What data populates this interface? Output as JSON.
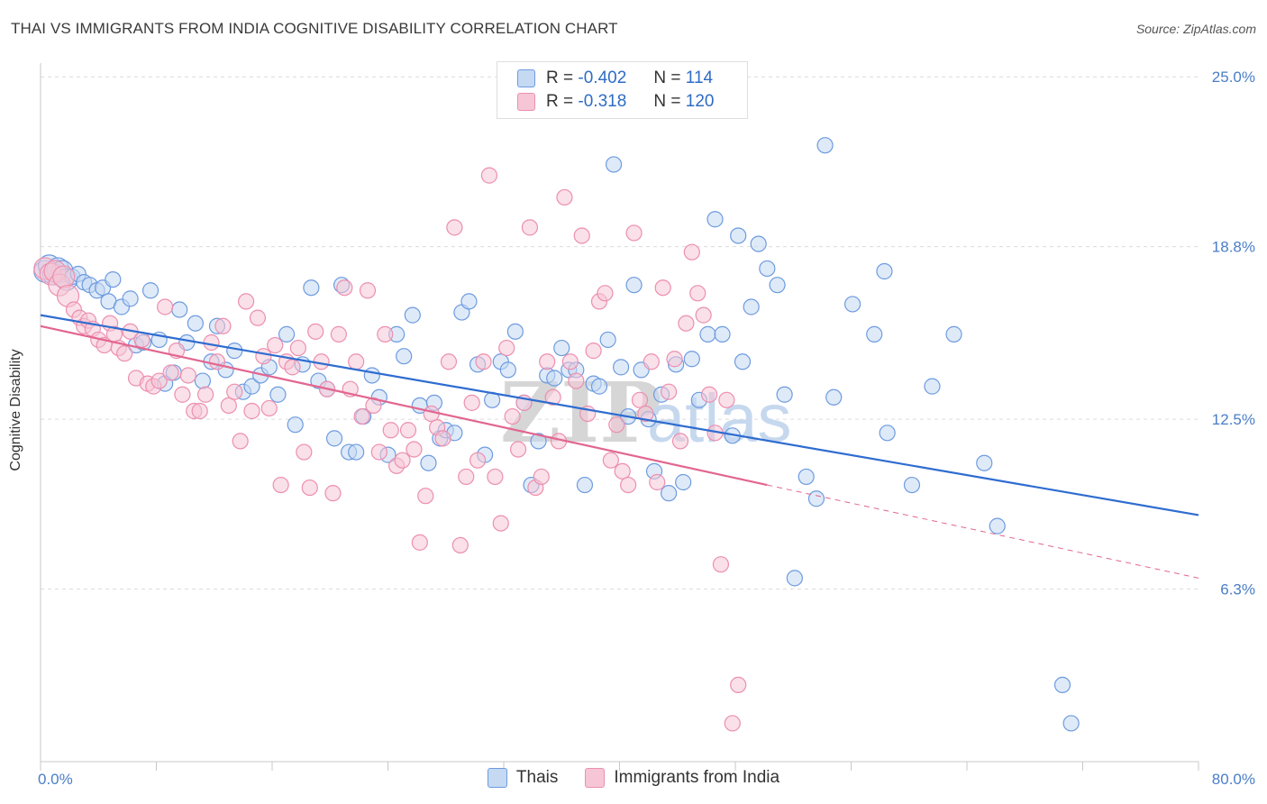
{
  "title": "THAI VS IMMIGRANTS FROM INDIA COGNITIVE DISABILITY CORRELATION CHART",
  "source": "Source: ZipAtlas.com",
  "watermark": {
    "zip": "ZIP",
    "atlas": "atlas"
  },
  "legend": {
    "r_label": "R =",
    "n_label": "N =",
    "rows": [
      {
        "r": "-0.402",
        "n": "114"
      },
      {
        "r": "-0.318",
        "n": "120"
      }
    ]
  },
  "chart_data": {
    "type": "scatter",
    "title": "THAI VS IMMIGRANTS FROM INDIA COGNITIVE DISABILITY CORRELATION CHART",
    "xlabel": "",
    "ylabel": "Cognitive Disability",
    "xlim": [
      0,
      80
    ],
    "ylim": [
      0,
      25.5
    ],
    "x_tick_labels": [
      "0.0%",
      "80.0%"
    ],
    "y_ticks": [
      6.3,
      12.5,
      18.8,
      25.0
    ],
    "y_tick_labels": [
      "6.3%",
      "12.5%",
      "18.8%",
      "25.0%"
    ],
    "grid": true,
    "legend_position": "top-center",
    "series": [
      {
        "name": "Thais",
        "color": "#6d9be0",
        "fill": "#c5d9f3",
        "r": -0.402,
        "n": 114,
        "trend": {
          "x": [
            0,
            80
          ],
          "y": [
            16.3,
            9.0
          ]
        },
        "points": [
          [
            0.3,
            17.9
          ],
          [
            0.6,
            18.1
          ],
          [
            0.9,
            17.8
          ],
          [
            1.2,
            18.0
          ],
          [
            1.5,
            17.9
          ],
          [
            1.8,
            17.6
          ],
          [
            2.2,
            17.7
          ],
          [
            2.6,
            17.8
          ],
          [
            3.0,
            17.5
          ],
          [
            3.4,
            17.4
          ],
          [
            3.9,
            17.2
          ],
          [
            4.3,
            17.3
          ],
          [
            4.7,
            16.8
          ],
          [
            5.0,
            17.6
          ],
          [
            5.6,
            16.6
          ],
          [
            6.2,
            16.9
          ],
          [
            6.6,
            15.2
          ],
          [
            7.1,
            15.3
          ],
          [
            7.6,
            17.2
          ],
          [
            8.2,
            15.4
          ],
          [
            8.6,
            13.8
          ],
          [
            9.2,
            14.2
          ],
          [
            9.6,
            16.5
          ],
          [
            10.1,
            15.3
          ],
          [
            10.7,
            16.0
          ],
          [
            11.2,
            13.9
          ],
          [
            11.8,
            14.6
          ],
          [
            12.2,
            15.9
          ],
          [
            12.8,
            14.3
          ],
          [
            13.4,
            15.0
          ],
          [
            14.0,
            13.5
          ],
          [
            14.6,
            13.7
          ],
          [
            15.2,
            14.1
          ],
          [
            15.8,
            14.4
          ],
          [
            16.4,
            13.4
          ],
          [
            17.0,
            15.6
          ],
          [
            17.6,
            12.3
          ],
          [
            18.1,
            14.5
          ],
          [
            18.7,
            17.3
          ],
          [
            19.2,
            13.9
          ],
          [
            19.8,
            13.6
          ],
          [
            20.3,
            11.8
          ],
          [
            20.8,
            17.4
          ],
          [
            21.3,
            11.3
          ],
          [
            21.8,
            11.3
          ],
          [
            22.3,
            12.6
          ],
          [
            22.9,
            14.1
          ],
          [
            23.4,
            13.3
          ],
          [
            24.0,
            11.2
          ],
          [
            24.6,
            15.6
          ],
          [
            25.1,
            14.8
          ],
          [
            25.7,
            16.3
          ],
          [
            26.2,
            13.0
          ],
          [
            26.8,
            10.9
          ],
          [
            27.2,
            13.1
          ],
          [
            27.6,
            11.8
          ],
          [
            28.0,
            12.1
          ],
          [
            28.6,
            12.0
          ],
          [
            29.1,
            16.4
          ],
          [
            29.6,
            16.8
          ],
          [
            30.2,
            14.5
          ],
          [
            30.7,
            11.2
          ],
          [
            31.2,
            13.2
          ],
          [
            31.8,
            14.6
          ],
          [
            32.3,
            14.3
          ],
          [
            32.8,
            15.7
          ],
          [
            33.4,
            13.1
          ],
          [
            33.9,
            10.1
          ],
          [
            34.4,
            11.7
          ],
          [
            35.0,
            14.1
          ],
          [
            35.5,
            14.0
          ],
          [
            36.0,
            15.1
          ],
          [
            36.5,
            14.3
          ],
          [
            37.0,
            14.3
          ],
          [
            37.6,
            10.1
          ],
          [
            38.2,
            13.8
          ],
          [
            38.6,
            13.7
          ],
          [
            39.2,
            15.4
          ],
          [
            39.6,
            21.8
          ],
          [
            40.1,
            14.4
          ],
          [
            40.6,
            12.6
          ],
          [
            41.0,
            17.4
          ],
          [
            41.5,
            14.3
          ],
          [
            42.0,
            12.5
          ],
          [
            42.4,
            10.6
          ],
          [
            42.9,
            13.4
          ],
          [
            43.4,
            9.8
          ],
          [
            43.9,
            14.5
          ],
          [
            44.4,
            10.2
          ],
          [
            45.0,
            14.7
          ],
          [
            45.5,
            13.2
          ],
          [
            46.1,
            15.6
          ],
          [
            46.6,
            19.8
          ],
          [
            47.1,
            15.6
          ],
          [
            47.8,
            11.9
          ],
          [
            48.2,
            19.2
          ],
          [
            48.5,
            14.6
          ],
          [
            49.1,
            16.6
          ],
          [
            49.6,
            18.9
          ],
          [
            50.2,
            18.0
          ],
          [
            50.9,
            17.4
          ],
          [
            51.4,
            13.4
          ],
          [
            52.1,
            6.7
          ],
          [
            52.9,
            10.4
          ],
          [
            53.6,
            9.6
          ],
          [
            54.2,
            22.5
          ],
          [
            54.8,
            13.3
          ],
          [
            56.1,
            16.7
          ],
          [
            57.6,
            15.6
          ],
          [
            58.3,
            17.9
          ],
          [
            58.5,
            12.0
          ],
          [
            60.2,
            10.1
          ],
          [
            61.6,
            13.7
          ],
          [
            63.1,
            15.6
          ],
          [
            65.2,
            10.9
          ],
          [
            66.1,
            8.6
          ],
          [
            70.6,
            2.8
          ],
          [
            71.2,
            1.4
          ]
        ]
      },
      {
        "name": "Immigrants from India",
        "color": "#ec8fb0",
        "fill": "#f6c6d6",
        "r": -0.318,
        "n": 120,
        "trend": {
          "x": [
            0,
            50.2
          ],
          "y": [
            15.9,
            10.1
          ]
        },
        "trend_dashed": {
          "x": [
            50.2,
            80
          ],
          "y": [
            10.1,
            6.7
          ]
        },
        "points": [
          [
            0.3,
            18.0
          ],
          [
            0.7,
            17.8
          ],
          [
            1.0,
            17.9
          ],
          [
            1.3,
            17.4
          ],
          [
            1.6,
            17.7
          ],
          [
            1.9,
            17.0
          ],
          [
            2.3,
            16.5
          ],
          [
            2.7,
            16.2
          ],
          [
            3.0,
            15.9
          ],
          [
            3.3,
            16.1
          ],
          [
            3.6,
            15.8
          ],
          [
            4.0,
            15.4
          ],
          [
            4.4,
            15.2
          ],
          [
            4.8,
            16.0
          ],
          [
            5.1,
            15.6
          ],
          [
            5.4,
            15.1
          ],
          [
            5.8,
            14.9
          ],
          [
            6.2,
            15.7
          ],
          [
            6.6,
            14.0
          ],
          [
            7.0,
            15.4
          ],
          [
            7.4,
            13.8
          ],
          [
            7.8,
            13.7
          ],
          [
            8.2,
            13.9
          ],
          [
            8.6,
            16.6
          ],
          [
            9.0,
            14.2
          ],
          [
            9.4,
            15.0
          ],
          [
            9.8,
            13.4
          ],
          [
            10.2,
            14.1
          ],
          [
            10.6,
            12.8
          ],
          [
            11.0,
            12.8
          ],
          [
            11.4,
            13.4
          ],
          [
            11.8,
            15.3
          ],
          [
            12.2,
            14.6
          ],
          [
            12.6,
            15.9
          ],
          [
            13.0,
            13.0
          ],
          [
            13.4,
            13.5
          ],
          [
            13.8,
            11.7
          ],
          [
            14.2,
            16.8
          ],
          [
            14.6,
            12.8
          ],
          [
            15.0,
            16.2
          ],
          [
            15.4,
            14.8
          ],
          [
            15.8,
            12.9
          ],
          [
            16.2,
            15.2
          ],
          [
            16.6,
            10.1
          ],
          [
            17.0,
            14.6
          ],
          [
            17.4,
            14.4
          ],
          [
            17.8,
            15.1
          ],
          [
            18.2,
            11.3
          ],
          [
            18.6,
            10.0
          ],
          [
            19.0,
            15.7
          ],
          [
            19.4,
            14.6
          ],
          [
            19.8,
            13.6
          ],
          [
            20.2,
            9.8
          ],
          [
            20.6,
            15.6
          ],
          [
            21.0,
            17.3
          ],
          [
            21.4,
            13.6
          ],
          [
            21.8,
            14.6
          ],
          [
            22.2,
            12.6
          ],
          [
            22.6,
            17.2
          ],
          [
            23.0,
            13.0
          ],
          [
            23.4,
            11.3
          ],
          [
            23.8,
            15.6
          ],
          [
            24.2,
            12.1
          ],
          [
            24.6,
            10.8
          ],
          [
            25.0,
            11.0
          ],
          [
            25.4,
            12.1
          ],
          [
            25.8,
            11.4
          ],
          [
            26.2,
            8.0
          ],
          [
            26.6,
            9.7
          ],
          [
            27.0,
            12.7
          ],
          [
            27.4,
            12.2
          ],
          [
            27.8,
            11.8
          ],
          [
            28.2,
            14.6
          ],
          [
            28.6,
            19.5
          ],
          [
            29.0,
            7.9
          ],
          [
            29.4,
            10.4
          ],
          [
            29.8,
            13.1
          ],
          [
            30.2,
            11.0
          ],
          [
            30.6,
            14.6
          ],
          [
            31.0,
            21.4
          ],
          [
            31.4,
            10.4
          ],
          [
            31.8,
            8.7
          ],
          [
            32.2,
            15.1
          ],
          [
            32.6,
            12.6
          ],
          [
            33.0,
            11.4
          ],
          [
            33.4,
            13.1
          ],
          [
            33.8,
            19.5
          ],
          [
            34.2,
            10.0
          ],
          [
            34.6,
            10.4
          ],
          [
            35.0,
            14.6
          ],
          [
            35.4,
            13.3
          ],
          [
            35.8,
            11.7
          ],
          [
            36.2,
            20.6
          ],
          [
            36.6,
            14.6
          ],
          [
            37.0,
            13.9
          ],
          [
            37.4,
            19.2
          ],
          [
            37.8,
            12.7
          ],
          [
            38.2,
            15.0
          ],
          [
            38.6,
            16.8
          ],
          [
            39.0,
            17.1
          ],
          [
            39.4,
            11.0
          ],
          [
            39.8,
            12.3
          ],
          [
            40.2,
            10.6
          ],
          [
            40.6,
            10.1
          ],
          [
            41.0,
            19.3
          ],
          [
            41.4,
            13.2
          ],
          [
            41.8,
            12.7
          ],
          [
            42.2,
            14.6
          ],
          [
            42.6,
            10.2
          ],
          [
            43.0,
            17.3
          ],
          [
            43.4,
            13.5
          ],
          [
            43.8,
            14.7
          ],
          [
            44.2,
            11.7
          ],
          [
            44.6,
            16.0
          ],
          [
            45.0,
            18.6
          ],
          [
            45.4,
            17.1
          ],
          [
            45.8,
            16.3
          ],
          [
            46.2,
            13.4
          ],
          [
            46.6,
            12.0
          ],
          [
            47.0,
            7.2
          ],
          [
            47.4,
            13.2
          ],
          [
            47.8,
            1.4
          ],
          [
            48.2,
            2.8
          ]
        ]
      }
    ]
  },
  "bottom_legend": [
    {
      "label": "Thais"
    },
    {
      "label": "Immigrants from India"
    }
  ]
}
